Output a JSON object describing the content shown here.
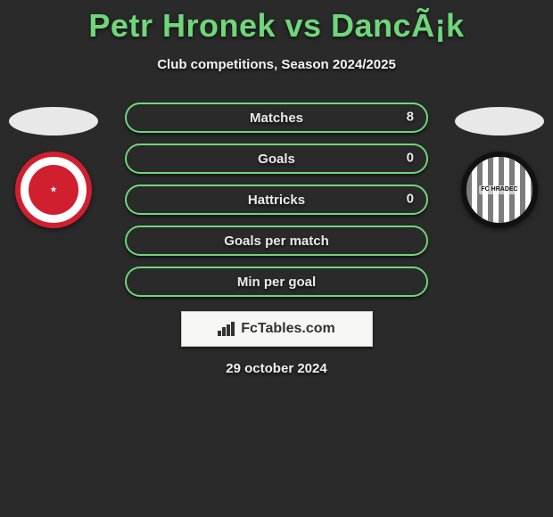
{
  "title": "Petr Hronek vs DancÃ¡k",
  "subtitle": "Club competitions, Season 2024/2025",
  "date": "29 october 2024",
  "colors": {
    "accent_green": "#6fd67a",
    "background": "#2a2a2a",
    "text": "#f0f0f0",
    "logo_bg": "#f7f7f5",
    "logo_border": "#c9c9c3",
    "logo_text": "#333333"
  },
  "clubs": {
    "left": {
      "name": "SK Slavia Praha",
      "badge_primary": "#d01f2e",
      "badge_secondary": "#ffffff"
    },
    "right": {
      "name": "FC Hradec Králové",
      "badge_primary": "#111111",
      "badge_secondary": "#ffffff"
    }
  },
  "stats": [
    {
      "label": "Matches",
      "value": "8"
    },
    {
      "label": "Goals",
      "value": "0"
    },
    {
      "label": "Hattricks",
      "value": "0"
    },
    {
      "label": "Goals per match",
      "value": ""
    },
    {
      "label": "Min per goal",
      "value": ""
    }
  ],
  "branding": {
    "site": "FcTables.com"
  },
  "layout": {
    "pill_width": 340,
    "pill_height": 34,
    "pill_radius": 18,
    "pill_border_color": "#6fd67a",
    "pill_gap": 12,
    "title_fontsize": 36,
    "subtitle_fontsize": 15,
    "stat_label_fontsize": 15
  }
}
